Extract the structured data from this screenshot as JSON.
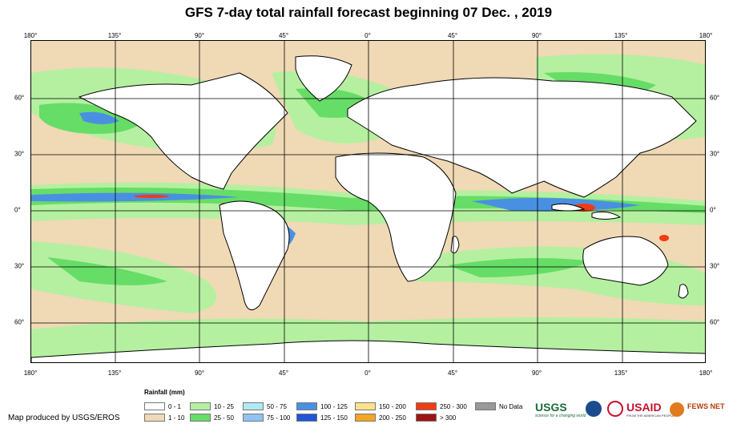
{
  "title": "GFS 7-day total rainfall forecast beginning 07 Dec. , 2019",
  "lon_labels": [
    "180°",
    "135°",
    "90°",
    "45°",
    "0°",
    "45°",
    "90°",
    "135°",
    "180°"
  ],
  "lat_labels": [
    "60°",
    "30°",
    "0°",
    "30°",
    "60°"
  ],
  "legend": {
    "title": "Rainfall (mm)",
    "items": [
      {
        "label": "0 - 1",
        "color": "#ffffff"
      },
      {
        "label": "1 - 10",
        "color": "#f0d9b5"
      },
      {
        "label": "10 - 25",
        "color": "#b4f0a0"
      },
      {
        "label": "25 - 50",
        "color": "#66dd66"
      },
      {
        "label": "50 - 75",
        "color": "#b0eaf5"
      },
      {
        "label": "75 - 100",
        "color": "#8fc2f5"
      },
      {
        "label": "100 - 125",
        "color": "#4a90e2"
      },
      {
        "label": "125 - 150",
        "color": "#1f55d6"
      },
      {
        "label": "150 - 200",
        "color": "#fde28c"
      },
      {
        "label": "200 - 250",
        "color": "#f5a623"
      },
      {
        "label": "250 - 300",
        "color": "#f03c14"
      },
      {
        "label": "> 300",
        "color": "#a01414"
      },
      {
        "label": "No Data",
        "color": "#999999"
      }
    ]
  },
  "credit": "Map produced by USGS/EROS",
  "logos": {
    "usgs": "USGS",
    "usgs_tag": "science for a changing world",
    "usaid": "USAID",
    "usaid_tag": "FROM THE AMERICAN PEOPLE",
    "fews": "FEWS NET"
  },
  "colors": {
    "ocean_dry": "#f0d9b5",
    "land_dry": "#ffffff",
    "light_rain": "#b4f0a0",
    "mod_rain": "#66dd66",
    "heavy_rain": "#4a90e2",
    "extreme_rain": "#f03c14"
  }
}
